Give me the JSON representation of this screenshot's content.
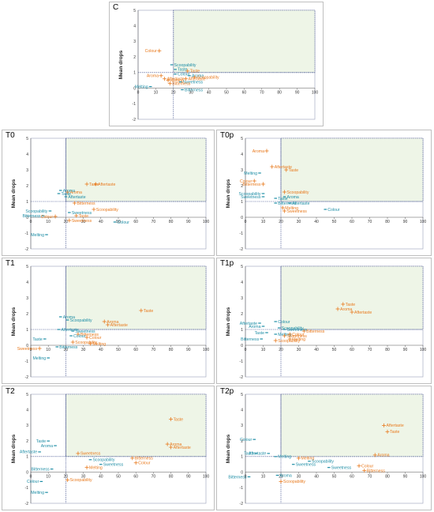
{
  "colors": {
    "series_orange": "#e87a1e",
    "series_blue": "#1f8ea6",
    "quadrant_fill": "#eef5e7",
    "axis": "#555555",
    "threshold": "#3b4a8a"
  },
  "shared_axes": {
    "ylabel": "Mean drops",
    "xlim": [
      0,
      100
    ],
    "ylim": [
      -2,
      5
    ],
    "xticks": [
      "0",
      "10",
      "20",
      "30",
      "40",
      "50",
      "60",
      "70",
      "80",
      "90",
      "100"
    ],
    "yticks": [
      "5",
      "4",
      "3",
      "2",
      "1",
      "0",
      "-1",
      "-2"
    ],
    "x_threshold": 20,
    "y_threshold": 1
  },
  "chart_data": [
    {
      "type": "scatter",
      "title": "C",
      "points": [
        {
          "label": "Colour",
          "x": 12,
          "y": 2.4,
          "color": "orange"
        },
        {
          "label": "Scoopability",
          "x": 19,
          "y": 1.5,
          "color": "blue"
        },
        {
          "label": "Taste",
          "x": 21,
          "y": 1.2,
          "color": "blue"
        },
        {
          "label": "Colour",
          "x": 21,
          "y": 0.9,
          "color": "blue"
        },
        {
          "label": "Taste",
          "x": 28,
          "y": 1.1,
          "color": "orange"
        },
        {
          "label": "Aroma",
          "x": 29,
          "y": 0.8,
          "color": "blue"
        },
        {
          "label": "Aroma",
          "x": 13,
          "y": 0.8,
          "color": "orange"
        },
        {
          "label": "Scoopability",
          "x": 32,
          "y": 0.7,
          "color": "orange"
        },
        {
          "label": "Aftertaste",
          "x": 15,
          "y": 0.6,
          "color": "orange"
        },
        {
          "label": "Melting",
          "x": 17,
          "y": 0.5,
          "color": "orange"
        },
        {
          "label": "Aftertaste",
          "x": 27,
          "y": 0.6,
          "color": "orange"
        },
        {
          "label": "Sweetness",
          "x": 24,
          "y": 0.4,
          "color": "blue"
        },
        {
          "label": "Bitterness",
          "x": 18,
          "y": 0.3,
          "color": "orange"
        },
        {
          "label": "Melting",
          "x": 7,
          "y": 0.1,
          "color": "blue"
        },
        {
          "label": "Bitterness",
          "x": 25,
          "y": -0.1,
          "color": "blue"
        }
      ]
    },
    {
      "type": "scatter",
      "title": "T0",
      "points": [
        {
          "label": "Taste",
          "x": 32,
          "y": 2.1,
          "color": "orange"
        },
        {
          "label": "Aftertaste",
          "x": 37,
          "y": 2.1,
          "color": "orange"
        },
        {
          "label": "Aroma",
          "x": 21,
          "y": 1.6,
          "color": "orange"
        },
        {
          "label": "Aroma",
          "x": 17,
          "y": 1.7,
          "color": "blue"
        },
        {
          "label": "Taste",
          "x": 16,
          "y": 1.5,
          "color": "blue"
        },
        {
          "label": "Aftertaste",
          "x": 20,
          "y": 1.3,
          "color": "blue"
        },
        {
          "label": "Bitterness",
          "x": 25,
          "y": 0.9,
          "color": "orange"
        },
        {
          "label": "Scoopability",
          "x": 36,
          "y": 0.5,
          "color": "orange"
        },
        {
          "label": "Scoopability",
          "x": 11,
          "y": 0.4,
          "color": "blue"
        },
        {
          "label": "Sweetness",
          "x": 22,
          "y": 0.3,
          "color": "blue"
        },
        {
          "label": "Bitterness",
          "x": 7,
          "y": 0.1,
          "color": "blue"
        },
        {
          "label": "Colour",
          "x": 14,
          "y": 0.05,
          "color": "orange"
        },
        {
          "label": "Taste",
          "x": 26,
          "y": 0.1,
          "color": "orange"
        },
        {
          "label": "Sweetness",
          "x": 22,
          "y": -0.2,
          "color": "orange"
        },
        {
          "label": "Colour",
          "x": 48,
          "y": -0.3,
          "color": "blue"
        },
        {
          "label": "Melting",
          "x": 9,
          "y": -1.1,
          "color": "blue"
        }
      ]
    },
    {
      "type": "scatter",
      "title": "T0p",
      "points": [
        {
          "label": "Aroma",
          "x": 12,
          "y": 4.2,
          "color": "orange"
        },
        {
          "label": "Aftertaste",
          "x": 15,
          "y": 3.2,
          "color": "orange"
        },
        {
          "label": "Taste",
          "x": 23,
          "y": 3.0,
          "color": "orange"
        },
        {
          "label": "Melting",
          "x": 8,
          "y": 2.8,
          "color": "blue"
        },
        {
          "label": "Colour",
          "x": 5,
          "y": 2.3,
          "color": "orange"
        },
        {
          "label": "Bitterness",
          "x": 10,
          "y": 2.1,
          "color": "orange"
        },
        {
          "label": "Scoopability",
          "x": 22,
          "y": 1.6,
          "color": "orange"
        },
        {
          "label": "Scoopability",
          "x": 10,
          "y": 1.5,
          "color": "blue"
        },
        {
          "label": "Aroma",
          "x": 22,
          "y": 1.3,
          "color": "blue"
        },
        {
          "label": "Sweetness",
          "x": 10,
          "y": 1.3,
          "color": "blue"
        },
        {
          "label": "Taste",
          "x": 17,
          "y": 1.2,
          "color": "blue"
        },
        {
          "label": "Bitterness",
          "x": 17,
          "y": 0.9,
          "color": "blue"
        },
        {
          "label": "Aftertaste",
          "x": 25,
          "y": 0.9,
          "color": "blue"
        },
        {
          "label": "Melting",
          "x": 21,
          "y": 0.6,
          "color": "orange"
        },
        {
          "label": "Sweetness",
          "x": 22,
          "y": 0.4,
          "color": "orange"
        },
        {
          "label": "Colour",
          "x": 45,
          "y": 0.5,
          "color": "blue"
        }
      ]
    },
    {
      "type": "scatter",
      "title": "T1",
      "points": [
        {
          "label": "Taste",
          "x": 63,
          "y": 2.2,
          "color": "orange"
        },
        {
          "label": "Aroma",
          "x": 17,
          "y": 1.8,
          "color": "blue"
        },
        {
          "label": "Scoopability",
          "x": 21,
          "y": 1.6,
          "color": "blue"
        },
        {
          "label": "Aroma",
          "x": 42,
          "y": 1.5,
          "color": "orange"
        },
        {
          "label": "Aftertaste",
          "x": 44,
          "y": 1.3,
          "color": "orange"
        },
        {
          "label": "Aftertaste",
          "x": 16,
          "y": 1.0,
          "color": "blue"
        },
        {
          "label": "Sweetness",
          "x": 24,
          "y": 0.9,
          "color": "blue"
        },
        {
          "label": "Bitterness",
          "x": 27,
          "y": 0.7,
          "color": "orange"
        },
        {
          "label": "Colour",
          "x": 23,
          "y": 0.6,
          "color": "blue"
        },
        {
          "label": "Colour",
          "x": 32,
          "y": 0.5,
          "color": "orange"
        },
        {
          "label": "Taste",
          "x": 8,
          "y": 0.4,
          "color": "blue"
        },
        {
          "label": "Scoopability",
          "x": 24,
          "y": 0.2,
          "color": "orange"
        },
        {
          "label": "Melting",
          "x": 34,
          "y": 0.1,
          "color": "orange"
        },
        {
          "label": "Sweetness",
          "x": 5,
          "y": -0.2,
          "color": "orange"
        },
        {
          "label": "Bitterness",
          "x": 15,
          "y": -0.1,
          "color": "blue"
        },
        {
          "label": "Melting",
          "x": 10,
          "y": -0.8,
          "color": "blue"
        }
      ]
    },
    {
      "type": "scatter",
      "title": "T1p",
      "points": [
        {
          "label": "Taste",
          "x": 55,
          "y": 2.6,
          "color": "orange"
        },
        {
          "label": "Aroma",
          "x": 52,
          "y": 2.3,
          "color": "orange"
        },
        {
          "label": "Aftertaste",
          "x": 60,
          "y": 2.1,
          "color": "orange"
        },
        {
          "label": "Colour",
          "x": 17,
          "y": 1.5,
          "color": "blue"
        },
        {
          "label": "Aftertaste",
          "x": 8,
          "y": 1.4,
          "color": "blue"
        },
        {
          "label": "Aroma",
          "x": 10,
          "y": 1.2,
          "color": "blue"
        },
        {
          "label": "Scoopability",
          "x": 19,
          "y": 1.1,
          "color": "blue"
        },
        {
          "label": "Sweetness",
          "x": 22,
          "y": 1.0,
          "color": "blue"
        },
        {
          "label": "Bitterness",
          "x": 33,
          "y": 0.9,
          "color": "orange"
        },
        {
          "label": "Taste",
          "x": 12,
          "y": 0.8,
          "color": "blue"
        },
        {
          "label": "Melting",
          "x": 17,
          "y": 0.7,
          "color": "blue"
        },
        {
          "label": "Colour",
          "x": 25,
          "y": 0.7,
          "color": "orange"
        },
        {
          "label": "Sweetness",
          "x": 22,
          "y": 0.6,
          "color": "orange"
        },
        {
          "label": "Bitterness",
          "x": 9,
          "y": 0.4,
          "color": "blue"
        },
        {
          "label": "Melting",
          "x": 25,
          "y": 0.4,
          "color": "orange"
        },
        {
          "label": "Scoopability",
          "x": 17,
          "y": 0.3,
          "color": "orange"
        }
      ]
    },
    {
      "type": "scatter",
      "title": "T2",
      "points": [
        {
          "label": "Taste",
          "x": 80,
          "y": 3.4,
          "color": "orange"
        },
        {
          "label": "Taste",
          "x": 10,
          "y": 2.0,
          "color": "blue"
        },
        {
          "label": "Aroma",
          "x": 14,
          "y": 1.7,
          "color": "blue"
        },
        {
          "label": "Aroma",
          "x": 78,
          "y": 1.8,
          "color": "orange"
        },
        {
          "label": "Aftertaste",
          "x": 80,
          "y": 1.6,
          "color": "orange"
        },
        {
          "label": "Aftertaste",
          "x": 5,
          "y": 1.3,
          "color": "blue"
        },
        {
          "label": "Sweetness",
          "x": 27,
          "y": 1.2,
          "color": "orange"
        },
        {
          "label": "Bitterness",
          "x": 58,
          "y": 0.9,
          "color": "orange"
        },
        {
          "label": "Scoopability",
          "x": 34,
          "y": 0.8,
          "color": "blue"
        },
        {
          "label": "Colour",
          "x": 60,
          "y": 0.6,
          "color": "orange"
        },
        {
          "label": "Sweetness",
          "x": 40,
          "y": 0.5,
          "color": "blue"
        },
        {
          "label": "Melting",
          "x": 32,
          "y": 0.3,
          "color": "orange"
        },
        {
          "label": "Bitterness",
          "x": 12,
          "y": 0.2,
          "color": "blue"
        },
        {
          "label": "Colour",
          "x": 6,
          "y": -0.6,
          "color": "blue"
        },
        {
          "label": "Scoopability",
          "x": 21,
          "y": -0.5,
          "color": "orange"
        },
        {
          "label": "Melting",
          "x": 9,
          "y": -1.3,
          "color": "blue"
        }
      ]
    },
    {
      "type": "scatter",
      "title": "T2p",
      "points": [
        {
          "label": "Aftertaste",
          "x": 78,
          "y": 3.0,
          "color": "orange"
        },
        {
          "label": "Taste",
          "x": 80,
          "y": 2.6,
          "color": "orange"
        },
        {
          "label": "Colour",
          "x": 5,
          "y": 2.1,
          "color": "blue"
        },
        {
          "label": "Taste",
          "x": 6,
          "y": 1.2,
          "color": "blue"
        },
        {
          "label": "Aftertaste",
          "x": 13,
          "y": 1.2,
          "color": "blue"
        },
        {
          "label": "Melting",
          "x": 17,
          "y": 1.0,
          "color": "blue"
        },
        {
          "label": "Aroma",
          "x": 73,
          "y": 1.1,
          "color": "orange"
        },
        {
          "label": "Melting",
          "x": 30,
          "y": 0.9,
          "color": "orange"
        },
        {
          "label": "Scoopability",
          "x": 36,
          "y": 0.7,
          "color": "blue"
        },
        {
          "label": "Sweetness",
          "x": 27,
          "y": 0.5,
          "color": "blue"
        },
        {
          "label": "Colour",
          "x": 64,
          "y": 0.4,
          "color": "orange"
        },
        {
          "label": "Sweetness",
          "x": 47,
          "y": 0.3,
          "color": "blue"
        },
        {
          "label": "Bitterness",
          "x": 67,
          "y": 0.1,
          "color": "orange"
        },
        {
          "label": "Bitterness",
          "x": 2,
          "y": -0.3,
          "color": "blue"
        },
        {
          "label": "Aroma",
          "x": 18,
          "y": -0.2,
          "color": "blue"
        },
        {
          "label": "Scoopability",
          "x": 20,
          "y": -0.6,
          "color": "orange"
        }
      ]
    }
  ]
}
